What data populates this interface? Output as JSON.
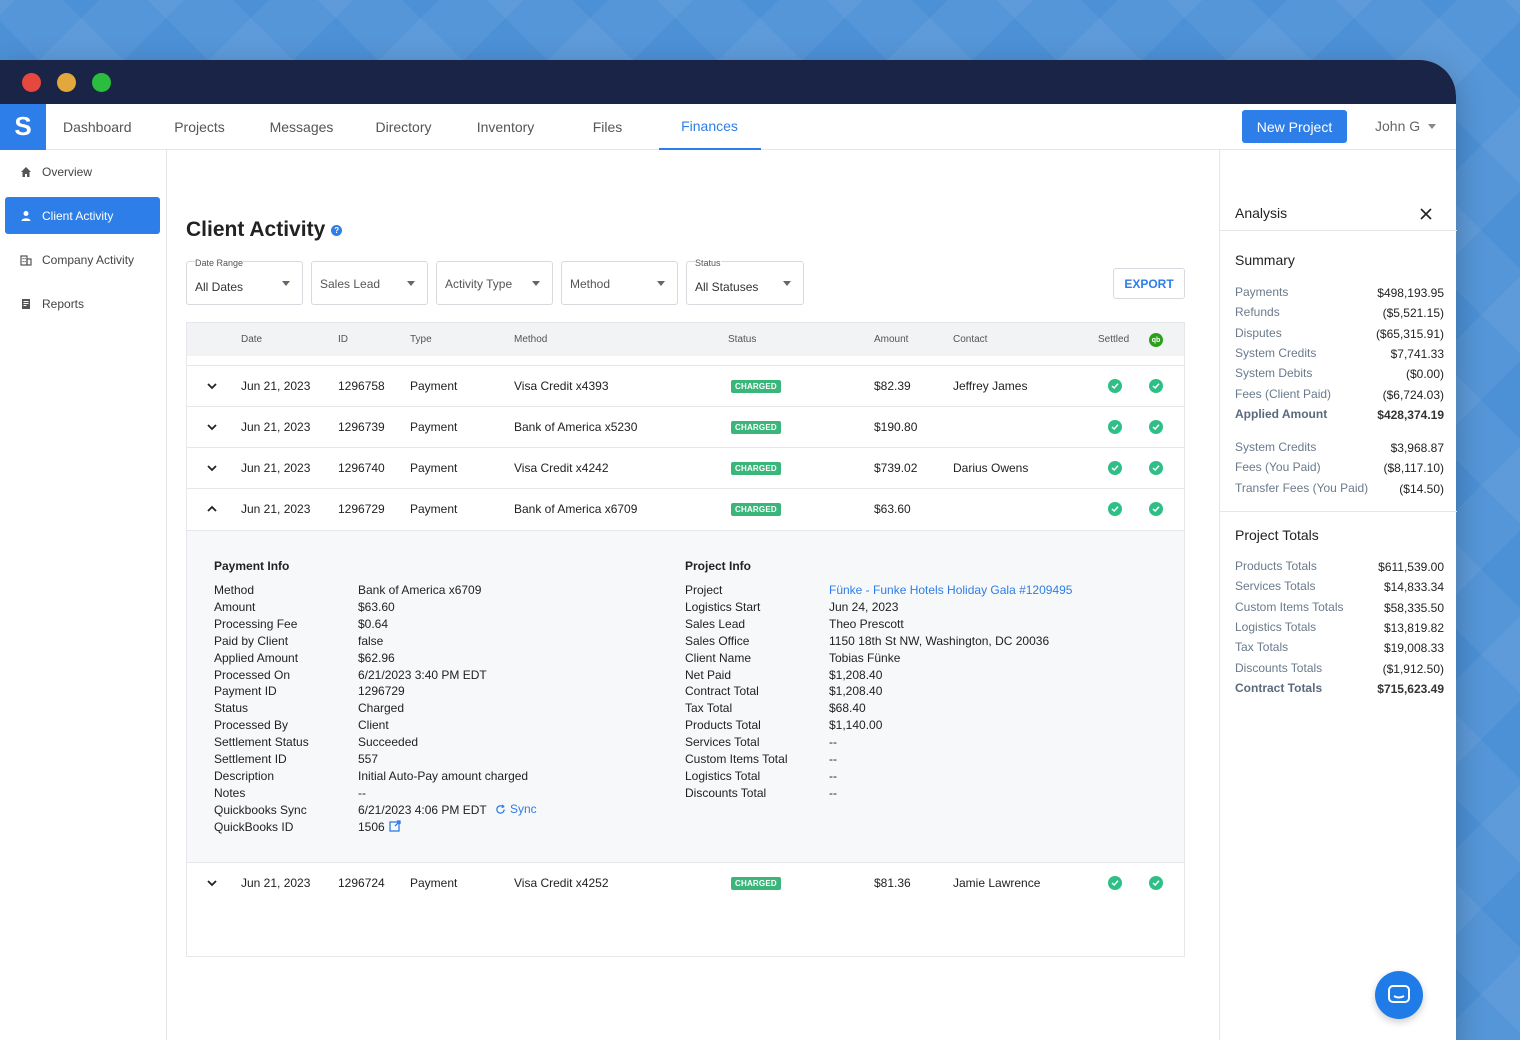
{
  "nav": {
    "logo": "S",
    "items": [
      "Dashboard",
      "Projects",
      "Messages",
      "Directory",
      "Inventory",
      "Files",
      "Finances"
    ],
    "active": "Finances",
    "new_project": "New Project",
    "user": "John G"
  },
  "sidebar": {
    "items": [
      "Overview",
      "Client Activity",
      "Company Activity",
      "Reports"
    ]
  },
  "page": {
    "title": "Client Activity"
  },
  "filters": {
    "date_range": {
      "label": "Date Range",
      "value": "All Dates"
    },
    "sales_lead": {
      "placeholder": "Sales Lead"
    },
    "activity_type": {
      "placeholder": "Activity Type"
    },
    "method": {
      "placeholder": "Method"
    },
    "status": {
      "label": "Status",
      "value": "All Statuses"
    },
    "export": "EXPORT"
  },
  "table": {
    "headers": {
      "date": "Date",
      "id": "ID",
      "type": "Type",
      "method": "Method",
      "status": "Status",
      "amount": "Amount",
      "contact": "Contact",
      "settled": "Settled",
      "qb": "qb"
    },
    "rows": [
      {
        "date": "Jun 21, 2023",
        "id": "1296758",
        "type": "Payment",
        "method": "Visa Credit x4393",
        "status": "CHARGED",
        "amount": "$82.39",
        "contact": "Jeffrey James"
      },
      {
        "date": "Jun 21, 2023",
        "id": "1296739",
        "type": "Payment",
        "method": "Bank of America x5230",
        "status": "CHARGED",
        "amount": "$190.80",
        "contact": ""
      },
      {
        "date": "Jun 21, 2023",
        "id": "1296740",
        "type": "Payment",
        "method": "Visa Credit x4242",
        "status": "CHARGED",
        "amount": "$739.02",
        "contact": "Darius Owens"
      },
      {
        "date": "Jun 21, 2023",
        "id": "1296729",
        "type": "Payment",
        "method": "Bank of America x6709",
        "status": "CHARGED",
        "amount": "$63.60",
        "contact": ""
      },
      {
        "date": "Jun 21, 2023",
        "id": "1296724",
        "type": "Payment",
        "method": "Visa Credit x4252",
        "status": "CHARGED",
        "amount": "$81.36",
        "contact": "Jamie Lawrence"
      }
    ]
  },
  "detail": {
    "payment_title": "Payment Info",
    "payment": [
      [
        "Method",
        "Bank of America x6709"
      ],
      [
        "Amount",
        "$63.60"
      ],
      [
        "Processing Fee",
        "$0.64"
      ],
      [
        "Paid by Client",
        "false"
      ],
      [
        "Applied Amount",
        "$62.96"
      ],
      [
        "Processed On",
        "6/21/2023 3:40 PM EDT"
      ],
      [
        "Payment ID",
        "1296729"
      ],
      [
        "Status",
        "Charged"
      ],
      [
        "Processed By",
        "Client"
      ],
      [
        "Settlement Status",
        "Succeeded"
      ],
      [
        "Settlement ID",
        "557"
      ],
      [
        "Description",
        "Initial Auto-Pay amount charged"
      ],
      [
        "Notes",
        "--"
      ],
      [
        "Quickbooks Sync",
        "6/21/2023 4:06 PM EDT"
      ],
      [
        "QuickBooks ID",
        "1506"
      ]
    ],
    "sync_label": "Sync",
    "project_title": "Project Info",
    "project": [
      [
        "Project",
        "Fünke - Funke Hotels Holiday Gala #1209495"
      ],
      [
        "Logistics Start",
        "Jun 24, 2023"
      ],
      [
        "Sales Lead",
        "Theo Prescott"
      ],
      [
        "Sales Office",
        "1150 18th St NW, Washington, DC 20036"
      ],
      [
        "Client Name",
        "Tobias Fünke"
      ],
      [
        "Net Paid",
        "$1,208.40"
      ],
      [
        "Contract Total",
        "$1,208.40"
      ],
      [
        "Tax Total",
        "$68.40"
      ],
      [
        "Products Total",
        "$1,140.00"
      ],
      [
        "Services Total",
        "--"
      ],
      [
        "Custom Items Total",
        "--"
      ],
      [
        "Logistics Total",
        "--"
      ],
      [
        "Discounts Total",
        "--"
      ]
    ]
  },
  "analysis": {
    "title": "Analysis",
    "summary_title": "Summary",
    "summary": [
      [
        "Payments",
        "$498,193.95"
      ],
      [
        "Refunds",
        "($5,521.15)"
      ],
      [
        "Disputes",
        "($65,315.91)"
      ],
      [
        "System Credits",
        "$7,741.33"
      ],
      [
        "System Debits",
        "($0.00)"
      ],
      [
        "Fees (Client Paid)",
        "($6,724.03)"
      ],
      [
        "Applied Amount",
        "$428,374.19"
      ]
    ],
    "summary2": [
      [
        "System Credits",
        "$3,968.87"
      ],
      [
        "Fees (You Paid)",
        "($8,117.10)"
      ],
      [
        "Transfer Fees (You Paid)",
        "($14.50)"
      ]
    ],
    "totals_title": "Project Totals",
    "totals": [
      [
        "Products Totals",
        "$611,539.00"
      ],
      [
        "Services Totals",
        "$14,833.34"
      ],
      [
        "Custom Items Totals",
        "$58,335.50"
      ],
      [
        "Logistics Totals",
        "$13,819.82"
      ],
      [
        "Tax Totals",
        "$19,008.33"
      ],
      [
        "Discounts Totals",
        "($1,912.50)"
      ],
      [
        "Contract Totals",
        "$715,623.49"
      ]
    ]
  },
  "colors": {
    "accent": "#2d7ee8",
    "titlebar": "#1a2447",
    "charged": "#3ab67a",
    "settled": "#2fbf86"
  }
}
